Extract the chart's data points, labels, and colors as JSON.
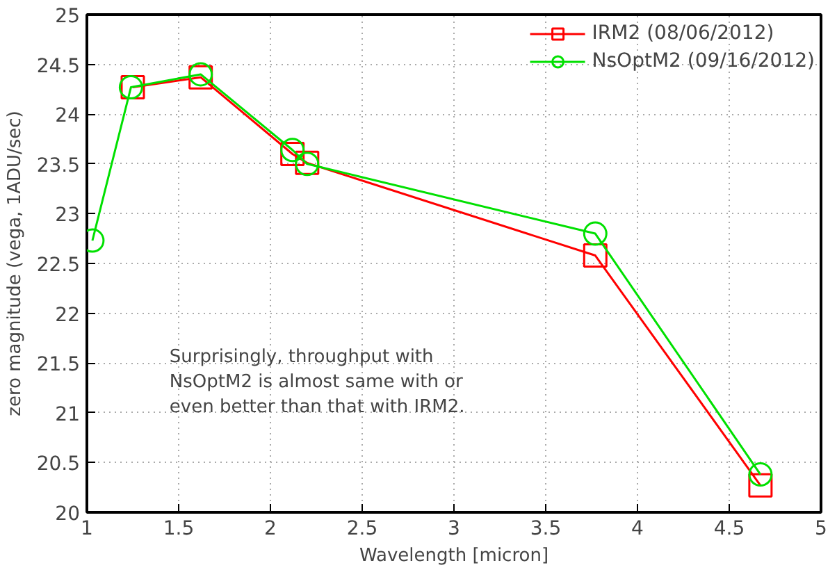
{
  "chart_data": {
    "type": "line",
    "xlabel": "Wavelength [micron]",
    "ylabel": "zero magnitude (vega, 1ADU/sec)",
    "xlim": [
      1,
      5
    ],
    "xticks": [
      1,
      1.5,
      2,
      2.5,
      3,
      3.5,
      4,
      4.5,
      5
    ],
    "ylim": [
      20,
      25
    ],
    "yticks": [
      20,
      20.5,
      21,
      21.5,
      22,
      22.5,
      23,
      23.5,
      24,
      24.5,
      25
    ],
    "grid": true,
    "legend": "top right",
    "line_style": "solid",
    "series": [
      {
        "name": "IRM2 (08/06/2012)",
        "color": "#ff0000",
        "marker": "square",
        "x": [
          1.25,
          1.62,
          2.12,
          2.2,
          3.77,
          4.67
        ],
        "values": [
          24.27,
          24.37,
          23.6,
          23.51,
          22.58,
          20.27
        ]
      },
      {
        "name": "NsOptM2 (09/16/2012)",
        "color": "#00e000",
        "marker": "circle",
        "x": [
          1.03,
          1.24,
          1.62,
          2.12,
          2.2,
          3.77,
          4.67
        ],
        "values": [
          22.73,
          24.27,
          24.4,
          23.64,
          23.5,
          22.8,
          20.38
        ]
      }
    ],
    "annotations": [
      "Surprisingly, throughput with\nNsOptM2 is almost same with or\neven better than that with IRM2."
    ]
  }
}
